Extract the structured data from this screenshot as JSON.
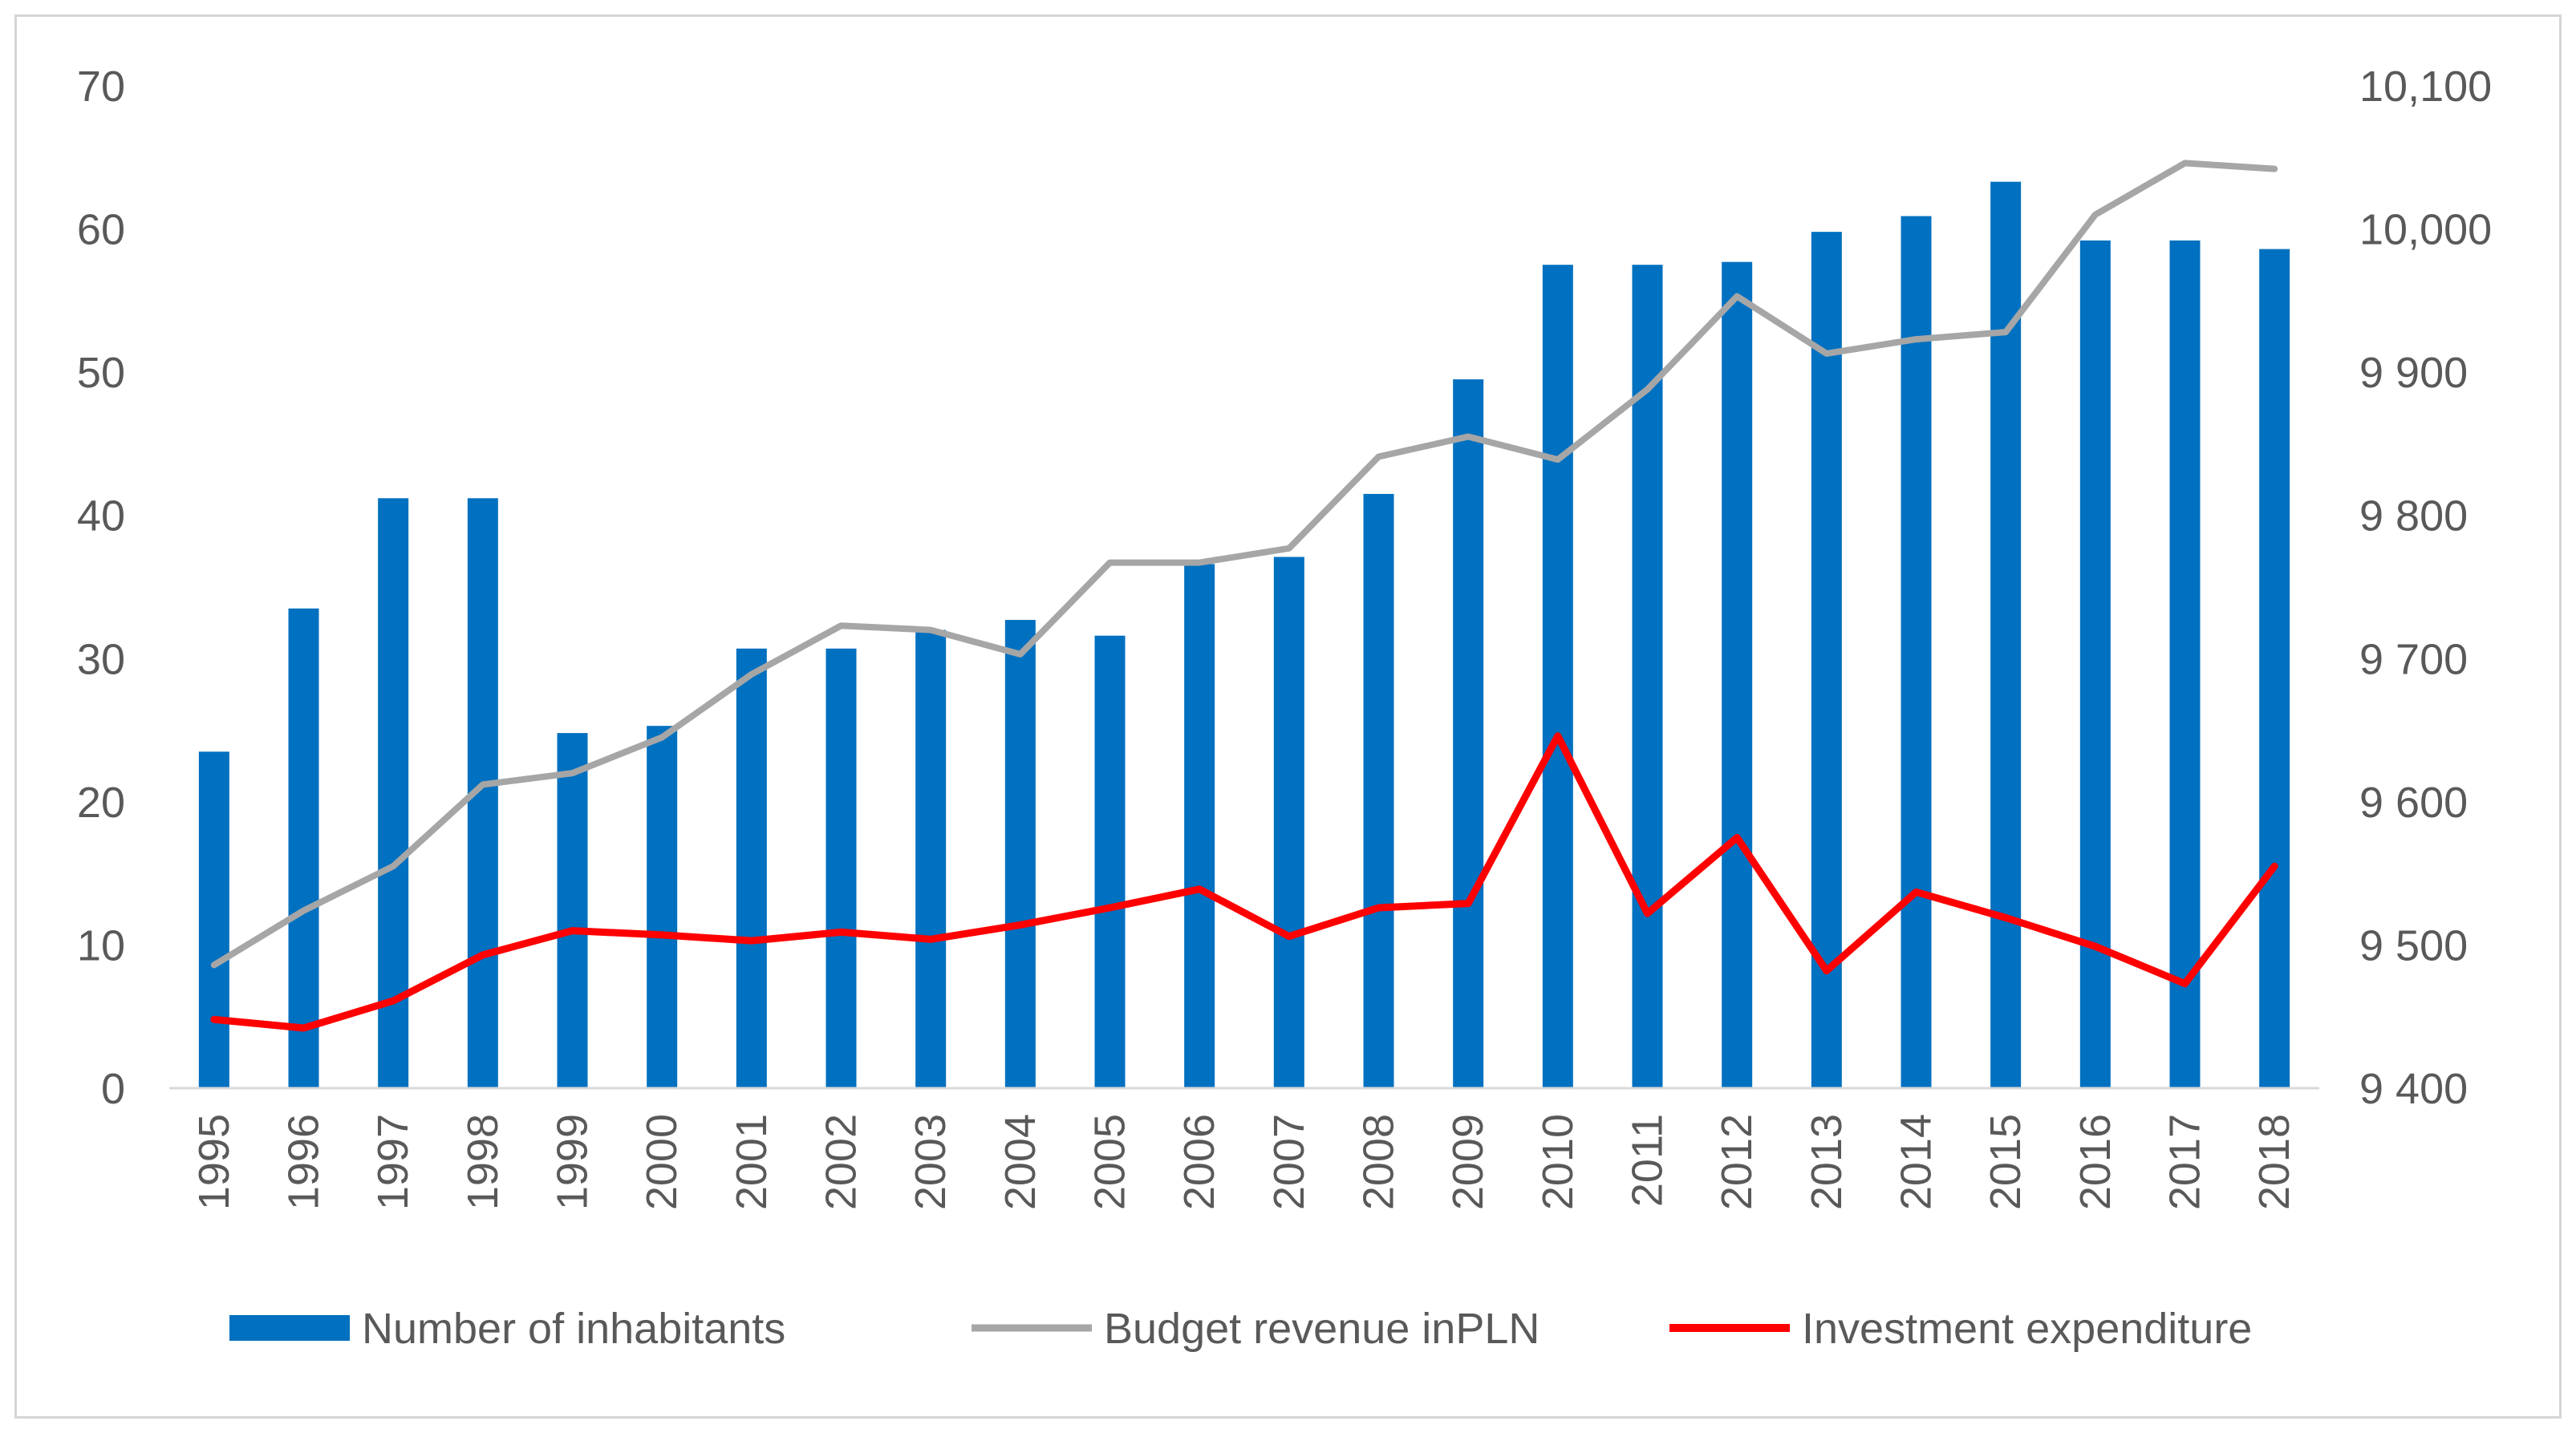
{
  "chart_data": {
    "type": "bar+line",
    "title": "",
    "categories": [
      "1995",
      "1996",
      "1997",
      "1998",
      "1999",
      "2000",
      "2001",
      "2002",
      "2003",
      "2004",
      "2005",
      "2006",
      "2007",
      "2008",
      "2009",
      "2010",
      "2011",
      "2012",
      "2013",
      "2014",
      "2015",
      "2016",
      "2017",
      "2018"
    ],
    "left_axis": {
      "min": 0,
      "max": 70,
      "step": 10,
      "tick_labels": [
        "0",
        "10",
        "20",
        "30",
        "40",
        "50",
        "60",
        "70"
      ]
    },
    "right_axis": {
      "min": 9400,
      "max": 10100,
      "step": 100,
      "tick_labels": [
        "9 400",
        "9 500",
        "9 600",
        "9 700",
        "9 800",
        "9 900",
        "10,000",
        "10,100"
      ]
    },
    "series": [
      {
        "name": "Number of inhabitants",
        "type": "bar",
        "axis": "right",
        "color": "#0070C0",
        "values": [
          9635,
          9735,
          9812,
          9812,
          9648,
          9653,
          9707,
          9707,
          9720,
          9727,
          9716,
          9766,
          9771,
          9815,
          9895,
          9975,
          9975,
          9977,
          9998,
          10009,
          10033,
          9992,
          9992,
          9986
        ]
      },
      {
        "name": "Budget revenue inPLN",
        "type": "line",
        "axis": "left",
        "color": "#A6A6A6",
        "values": [
          8.6,
          12.4,
          15.5,
          21.2,
          22.0,
          24.5,
          28.9,
          32.3,
          32.0,
          30.3,
          36.7,
          36.7,
          37.7,
          44.1,
          45.5,
          43.9,
          48.8,
          55.3,
          51.3,
          52.3,
          52.8,
          61.0,
          64.6,
          64.2
        ]
      },
      {
        "name": "Investment expenditure",
        "type": "line",
        "axis": "left",
        "color": "#FF0000",
        "values": [
          4.8,
          4.2,
          6.1,
          9.3,
          11.0,
          10.7,
          10.3,
          10.9,
          10.4,
          11.4,
          12.6,
          13.9,
          10.6,
          12.6,
          12.9,
          24.6,
          12.2,
          17.5,
          8.2,
          13.7,
          11.9,
          9.9,
          7.3,
          15.5
        ]
      }
    ],
    "legend": {
      "position": "bottom",
      "items": [
        "Number of inhabitants",
        "Budget revenue inPLN",
        "Investment expenditure"
      ]
    }
  }
}
